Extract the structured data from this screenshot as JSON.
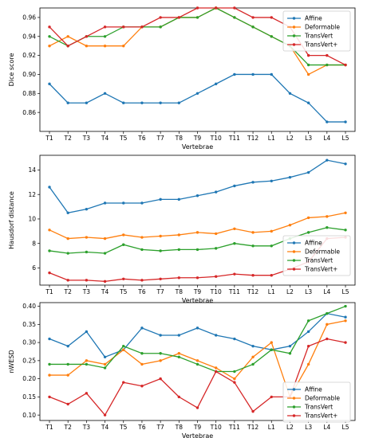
{
  "series_colors": [
    "#1f77b4",
    "#ff7f0e",
    "#2ca02c",
    "#d62728"
  ],
  "chart_data": [
    {
      "type": "line",
      "xlabel": "Vertebrae",
      "ylabel": "Dice score",
      "ylim": [
        0.84,
        0.97
      ],
      "yticks": [
        "0.86",
        "0.88",
        "0.90",
        "0.92",
        "0.94",
        "0.96"
      ],
      "legend": "top-right",
      "grid": false,
      "categories": [
        "T1",
        "T2",
        "T3",
        "T4",
        "T5",
        "T6",
        "T7",
        "T8",
        "T9",
        "T10",
        "T11",
        "T12",
        "L1",
        "L2",
        "L3",
        "L4",
        "L5"
      ],
      "series": [
        {
          "name": "Affine",
          "values": [
            0.89,
            0.87,
            0.87,
            0.88,
            0.87,
            0.87,
            0.87,
            0.87,
            0.88,
            0.89,
            0.9,
            0.9,
            0.9,
            0.88,
            0.87,
            0.85,
            0.85
          ]
        },
        {
          "name": "Deformable",
          "values": [
            0.93,
            0.94,
            0.93,
            0.93,
            0.93,
            0.95,
            0.95,
            0.96,
            0.96,
            0.97,
            0.96,
            0.95,
            0.94,
            0.93,
            0.9,
            0.91,
            0.91
          ]
        },
        {
          "name": "TransVert",
          "values": [
            0.94,
            0.93,
            0.94,
            0.94,
            0.95,
            0.95,
            0.95,
            0.96,
            0.96,
            0.97,
            0.96,
            0.95,
            0.94,
            0.93,
            0.91,
            0.91,
            0.91
          ]
        },
        {
          "name": "TransVert+",
          "values": [
            0.95,
            0.93,
            0.94,
            0.95,
            0.95,
            0.95,
            0.96,
            0.96,
            0.97,
            0.97,
            0.97,
            0.96,
            0.96,
            0.95,
            0.92,
            0.92,
            0.91
          ]
        }
      ]
    },
    {
      "type": "line",
      "xlabel": "Vertebrae",
      "ylabel": "Hausdorf distance",
      "ylim": [
        4.6,
        15.2
      ],
      "yticks": [
        "6",
        "8",
        "10",
        "12",
        "14"
      ],
      "legend": "bottom-right",
      "grid": false,
      "categories": [
        "T1",
        "T2",
        "T3",
        "T4",
        "T5",
        "T6",
        "T7",
        "T8",
        "T9",
        "T10",
        "T11",
        "T12",
        "L1",
        "L2",
        "L3",
        "L4",
        "L5"
      ],
      "series": [
        {
          "name": "Affine",
          "values": [
            12.6,
            10.5,
            10.8,
            11.3,
            11.3,
            11.3,
            11.6,
            11.6,
            11.9,
            12.2,
            12.7,
            13.0,
            13.1,
            13.4,
            13.8,
            14.8,
            14.5
          ]
        },
        {
          "name": "Deformable",
          "values": [
            9.1,
            8.4,
            8.5,
            8.4,
            8.7,
            8.5,
            8.6,
            8.7,
            8.9,
            8.8,
            9.2,
            8.9,
            9.0,
            9.5,
            10.1,
            10.2,
            10.5
          ]
        },
        {
          "name": "TransVert",
          "values": [
            7.4,
            7.2,
            7.3,
            7.2,
            7.9,
            7.5,
            7.4,
            7.5,
            7.5,
            7.6,
            8.0,
            7.8,
            7.8,
            8.4,
            8.9,
            9.3,
            9.1
          ]
        },
        {
          "name": "TransVert+",
          "values": [
            5.6,
            5.0,
            5.0,
            4.9,
            5.1,
            5.0,
            5.1,
            5.2,
            5.2,
            5.3,
            5.5,
            5.4,
            5.4,
            5.9,
            6.5,
            8.4,
            8.5
          ]
        }
      ]
    },
    {
      "type": "line",
      "xlabel": "Vertebrae",
      "ylabel": "nWESD",
      "ylim": [
        0.085,
        0.41
      ],
      "yticks": [
        "0.10",
        "0.15",
        "0.20",
        "0.25",
        "0.30",
        "0.35",
        "0.40"
      ],
      "legend": "bottom-right",
      "grid": false,
      "categories": [
        "T1",
        "T2",
        "T3",
        "T4",
        "T5",
        "T6",
        "T7",
        "T8",
        "T9",
        "T10",
        "T11",
        "T12",
        "L1",
        "L2",
        "L3",
        "L4",
        "L5"
      ],
      "series": [
        {
          "name": "Affine",
          "values": [
            0.31,
            0.29,
            0.33,
            0.26,
            0.28,
            0.34,
            0.32,
            0.32,
            0.34,
            0.32,
            0.31,
            0.29,
            0.28,
            0.29,
            0.33,
            0.38,
            0.37
          ]
        },
        {
          "name": "Deformable",
          "values": [
            0.21,
            0.21,
            0.25,
            0.24,
            0.28,
            0.24,
            0.25,
            0.27,
            0.25,
            0.23,
            0.2,
            0.26,
            0.3,
            0.15,
            0.24,
            0.35,
            0.36
          ]
        },
        {
          "name": "TransVert",
          "values": [
            0.24,
            0.24,
            0.24,
            0.23,
            0.29,
            0.27,
            0.27,
            0.26,
            0.24,
            0.22,
            0.22,
            0.24,
            0.28,
            0.27,
            0.36,
            0.38,
            0.4
          ]
        },
        {
          "name": "TransVert+",
          "values": [
            0.15,
            0.13,
            0.16,
            0.1,
            0.19,
            0.18,
            0.2,
            0.15,
            0.12,
            0.22,
            0.19,
            0.11,
            0.15,
            0.15,
            0.29,
            0.31,
            0.3
          ]
        }
      ]
    }
  ]
}
